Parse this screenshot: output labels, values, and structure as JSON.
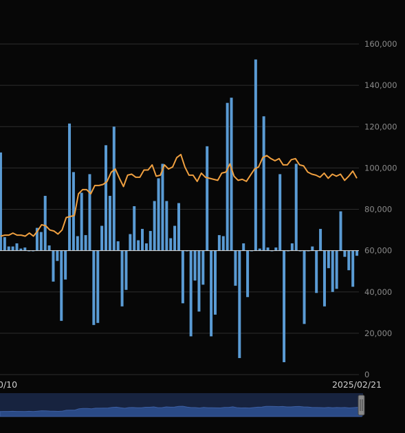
{
  "chart_data": {
    "type": "bar",
    "baseline": 60000,
    "ylim": [
      0,
      160000
    ],
    "y_ticks": [
      "160,000",
      "140,000",
      "120,000",
      "100,000",
      "80,000",
      "60,000",
      "40,000",
      "20,000",
      "0"
    ],
    "y_tick_values": [
      160000,
      140000,
      120000,
      100000,
      80000,
      60000,
      40000,
      20000,
      0
    ],
    "grid": true,
    "x_start_label": "0/10",
    "x_end_label": "2025/02/21",
    "series": [
      {
        "type": "bar",
        "color": "#5a9bd4",
        "values": [
          107500,
          66500,
          62000,
          62000,
          63500,
          61000,
          61500,
          60000,
          60000,
          71000,
          69000,
          86500,
          62500,
          45000,
          55000,
          26000,
          46000,
          121500,
          98000,
          67000,
          88000,
          67500,
          97000,
          24000,
          25000,
          72000,
          111000,
          86500,
          120000,
          64500,
          33000,
          41000,
          68000,
          81500,
          65000,
          70500,
          63500,
          69500,
          84000,
          95000,
          102000,
          84000,
          66000,
          72000,
          83000,
          34500,
          60000,
          18500,
          45500,
          30500,
          43500,
          110500,
          18500,
          29000,
          67500,
          67000,
          131500,
          134000,
          43000,
          8000,
          63500,
          37500,
          60000,
          152500,
          61000,
          125000,
          61500,
          60000,
          61500,
          97000,
          6000,
          60000,
          63500,
          102000,
          60000,
          24500,
          60000,
          62000,
          39500,
          70500,
          33000,
          51500,
          40000,
          41500,
          79000,
          57000,
          50500,
          42500,
          57500
        ]
      },
      {
        "type": "line",
        "color": "#f0a040",
        "values": [
          67000,
          67500,
          67500,
          68500,
          67500,
          67500,
          67000,
          68500,
          67000,
          69500,
          72500,
          72000,
          70000,
          69500,
          68000,
          70000,
          76000,
          76500,
          77000,
          87500,
          89500,
          89500,
          87500,
          91500,
          91500,
          92000,
          93500,
          98000,
          99500,
          95000,
          91000,
          96500,
          97000,
          95500,
          95500,
          99000,
          99000,
          101500,
          96000,
          96500,
          101500,
          99500,
          100500,
          105000,
          106500,
          100500,
          96500,
          96500,
          93500,
          97500,
          95500,
          95000,
          94500,
          94000,
          97500,
          98000,
          102000,
          96000,
          94000,
          94500,
          93500,
          96500,
          99500,
          100500,
          105000,
          106000,
          104500,
          103500,
          104500,
          101500,
          101500,
          104000,
          104500,
          101500,
          101000,
          98000,
          97000,
          96500,
          95500,
          97500,
          95000,
          97000,
          96000,
          97000,
          94000,
          96000,
          98500,
          95000
        ]
      }
    ],
    "navigator": {
      "type": "area",
      "color": "#2a4a86"
    }
  }
}
